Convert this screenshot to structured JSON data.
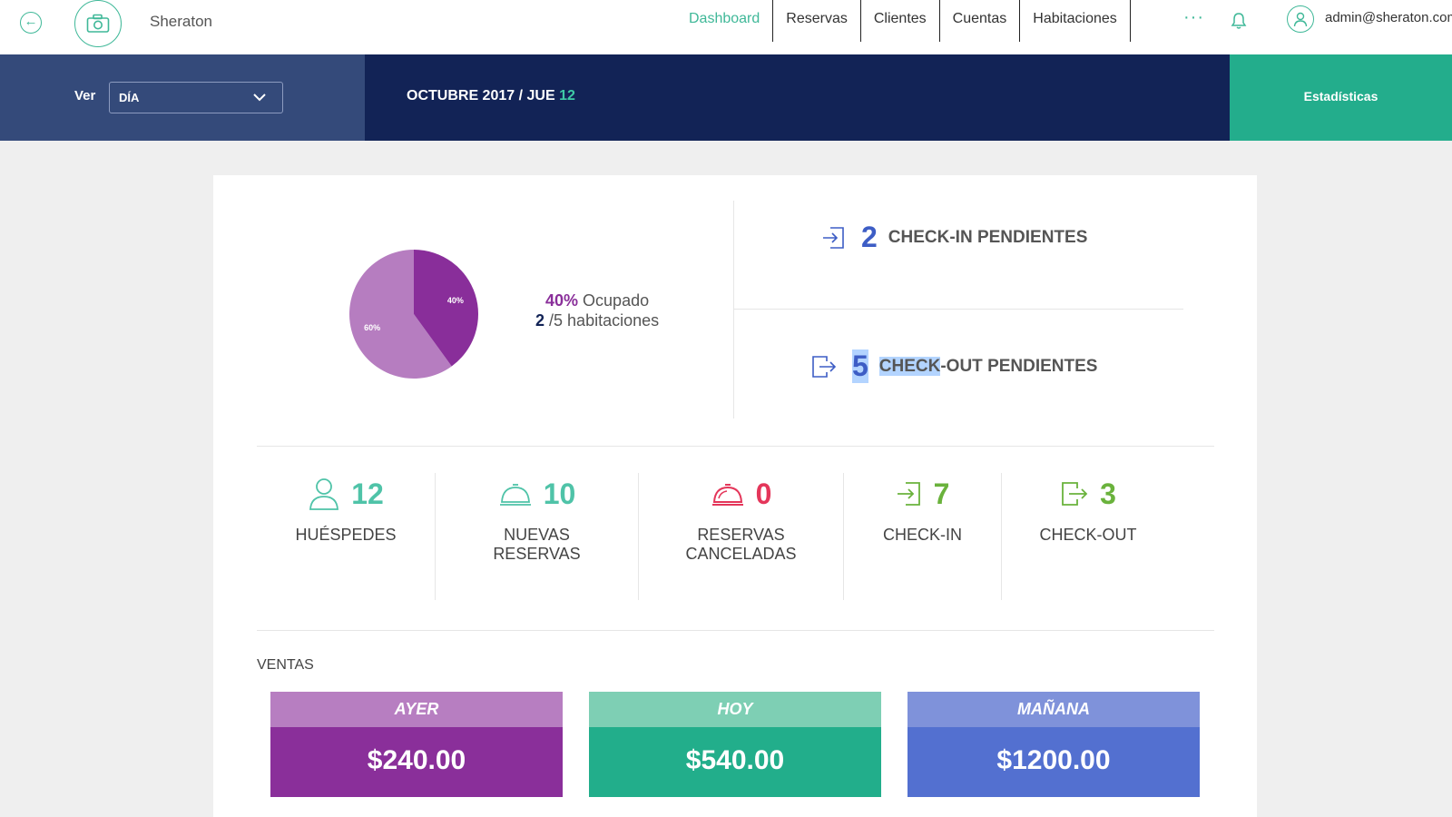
{
  "header": {
    "hotel_name": "Sheraton",
    "nav": [
      {
        "label": "Dashboard",
        "active": true
      },
      {
        "label": "Reservas",
        "active": false
      },
      {
        "label": "Clientes",
        "active": false
      },
      {
        "label": "Cuentas",
        "active": false
      },
      {
        "label": "Habitaciones",
        "active": false
      }
    ],
    "more_glyph": "···",
    "user_email": "admin@sheraton.com",
    "icons": {
      "back": "arrow-left-icon",
      "logo": "camera-icon",
      "bell": "bell-icon",
      "user": "user-icon"
    }
  },
  "toolbar": {
    "view_label": "Ver",
    "view_value": "DÍA",
    "date_prefix": "OCTUBRE 2017 / JUE ",
    "date_day": "12",
    "stats_button": "Estadísticas"
  },
  "occupancy": {
    "occupied_pct": 40,
    "free_pct": 60,
    "occupied_label": "40%",
    "free_label": "60%",
    "pct_text": "40%",
    "status_text": "Ocupado",
    "rooms_occupied": "2",
    "rooms_total_text": "/5 habitaciones",
    "colors": {
      "occupied": "#892e9a",
      "free": "#b67dc0"
    }
  },
  "pending": {
    "checkin": {
      "count": "2",
      "label": "CHECK-IN PENDIENTES"
    },
    "checkout": {
      "count": "5",
      "label_highlight": "CHECK",
      "label_rest": "-OUT PENDIENTES"
    }
  },
  "stats": [
    {
      "value": "12",
      "label": "HUÉSPEDES",
      "color": "#4fc3a8",
      "icon": "user-icon"
    },
    {
      "value": "10",
      "label": "NUEVAS RESERVAS",
      "color": "#4fc3a8",
      "icon": "service-bell-icon"
    },
    {
      "value": "0",
      "label": "RESERVAS CANCELADAS",
      "color": "#e4365a",
      "icon": "service-bell-icon"
    },
    {
      "value": "7",
      "label": "CHECK-IN",
      "color": "#6ab23c",
      "icon": "sign-in-icon"
    },
    {
      "value": "3",
      "label": "CHECK-OUT",
      "color": "#6ab23c",
      "icon": "sign-out-icon"
    }
  ],
  "sales": {
    "title": "VENTAS",
    "items": [
      {
        "label": "AYER",
        "amount": "$240.00",
        "header_color": "#b77ec1",
        "body_color": "#8a2f9a"
      },
      {
        "label": "HOY",
        "amount": "$540.00",
        "header_color": "#7ecfb4",
        "body_color": "#22ae8b"
      },
      {
        "label": "MAÑANA",
        "amount": "$1200.00",
        "header_color": "#7f92da",
        "body_color": "#5370d0"
      }
    ]
  }
}
